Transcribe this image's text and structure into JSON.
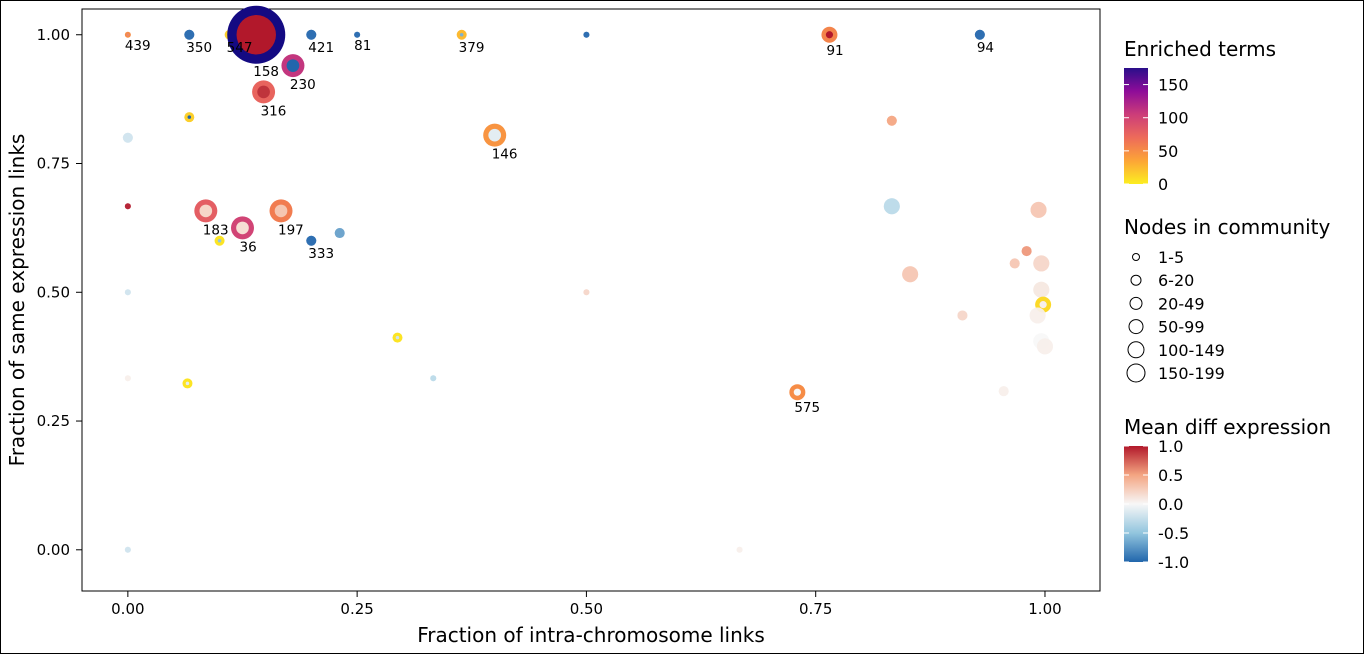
{
  "chart_data": {
    "type": "scatter",
    "xlabel": "Fraction of intra-chromosome links",
    "ylabel": "Fraction of same expression links",
    "xlim": [
      -0.05,
      1.06
    ],
    "ylim": [
      -0.08,
      1.05
    ],
    "x_ticks": [
      0.0,
      0.25,
      0.5,
      0.75,
      1.0
    ],
    "x_tick_labels": [
      "0.00",
      "0.25",
      "0.50",
      "0.75",
      "1.00"
    ],
    "y_ticks": [
      0.0,
      0.25,
      0.5,
      0.75,
      1.0
    ],
    "y_tick_labels": [
      "0.00",
      "0.25",
      "0.50",
      "0.75",
      "1.00"
    ],
    "grid": false,
    "legend_position": "right",
    "legends": {
      "enriched_terms": {
        "title": "Enriched terms",
        "ticks": [
          "150",
          "100",
          "50",
          "0"
        ],
        "range": [
          0,
          175
        ]
      },
      "nodes_in_community": {
        "title": "Nodes in community",
        "bins": [
          "1-5",
          "6-20",
          "20-49",
          "50-99",
          "100-149",
          "150-199"
        ]
      },
      "mean_diff_expression": {
        "title": "Mean diff expression",
        "ticks": [
          "1.0",
          "0.5",
          "0.0",
          "-0.5",
          "-1.0"
        ],
        "range": [
          -1.0,
          1.0
        ]
      }
    },
    "points": [
      {
        "x": 0.0,
        "y": 1.0,
        "size_bin": 1,
        "terms": 50,
        "diff": 0.6,
        "label": "439"
      },
      {
        "x": 0.067,
        "y": 1.0,
        "size_bin": 2,
        "terms": 0,
        "diff": -1.0,
        "label": "350"
      },
      {
        "x": 0.111,
        "y": 1.0,
        "size_bin": 2,
        "terms": 15,
        "diff": -0.9,
        "label": "547"
      },
      {
        "x": 0.14,
        "y": 1.0,
        "size_bin": 6,
        "terms": 175,
        "diff": 1.0,
        "label": "158"
      },
      {
        "x": 0.2,
        "y": 1.0,
        "size_bin": 2,
        "terms": 0,
        "diff": -1.0,
        "label": "421"
      },
      {
        "x": 0.25,
        "y": 1.0,
        "size_bin": 1,
        "terms": 0,
        "diff": -1.0,
        "label": "81"
      },
      {
        "x": 0.364,
        "y": 1.0,
        "size_bin": 2,
        "terms": 25,
        "diff": -0.6,
        "label": "379"
      },
      {
        "x": 0.5,
        "y": 1.0,
        "size_bin": 1,
        "terms": 0,
        "diff": -1.0,
        "label": ""
      },
      {
        "x": 0.765,
        "y": 1.0,
        "size_bin": 3,
        "terms": 55,
        "diff": 1.0,
        "label": "91"
      },
      {
        "x": 0.929,
        "y": 1.0,
        "size_bin": 2,
        "terms": 0,
        "diff": -1.0,
        "label": "94"
      },
      {
        "x": 0.18,
        "y": 0.94,
        "size_bin": 4,
        "terms": 110,
        "diff": -1.0,
        "label": "230"
      },
      {
        "x": 0.148,
        "y": 0.889,
        "size_bin": 4,
        "terms": 75,
        "diff": 0.9,
        "label": "316"
      },
      {
        "x": 0.067,
        "y": 0.84,
        "size_bin": 2,
        "terms": 15,
        "diff": -1.0,
        "label": ""
      },
      {
        "x": 0.0,
        "y": 0.8,
        "size_bin": 2,
        "terms": 0,
        "diff": -0.2,
        "label": ""
      },
      {
        "x": 0.4,
        "y": 0.805,
        "size_bin": 4,
        "terms": 45,
        "diff": -0.1,
        "label": "146"
      },
      {
        "x": 0.833,
        "y": 0.833,
        "size_bin": 2,
        "terms": 0,
        "diff": 0.5,
        "label": ""
      },
      {
        "x": 0.0,
        "y": 0.667,
        "size_bin": 1,
        "terms": 0,
        "diff": 1.0,
        "label": ""
      },
      {
        "x": 0.085,
        "y": 0.658,
        "size_bin": 4,
        "terms": 80,
        "diff": 0.2,
        "label": "183"
      },
      {
        "x": 0.125,
        "y": 0.625,
        "size_bin": 4,
        "terms": 100,
        "diff": 0.15,
        "label": "36"
      },
      {
        "x": 0.167,
        "y": 0.658,
        "size_bin": 4,
        "terms": 60,
        "diff": 0.3,
        "label": "197"
      },
      {
        "x": 0.1,
        "y": 0.6,
        "size_bin": 2,
        "terms": 5,
        "diff": -0.5,
        "label": ""
      },
      {
        "x": 0.2,
        "y": 0.6,
        "size_bin": 2,
        "terms": 0,
        "diff": -1.0,
        "label": "333"
      },
      {
        "x": 0.231,
        "y": 0.615,
        "size_bin": 2,
        "terms": 0,
        "diff": -0.7,
        "label": ""
      },
      {
        "x": 0.833,
        "y": 0.667,
        "size_bin": 3,
        "terms": 0,
        "diff": -0.3,
        "label": ""
      },
      {
        "x": 0.0,
        "y": 0.5,
        "size_bin": 1,
        "terms": 0,
        "diff": -0.2,
        "label": ""
      },
      {
        "x": 0.5,
        "y": 0.5,
        "size_bin": 1,
        "terms": 0,
        "diff": 0.2,
        "label": ""
      },
      {
        "x": 0.294,
        "y": 0.412,
        "size_bin": 2,
        "terms": 5,
        "diff": -0.2,
        "label": ""
      },
      {
        "x": 0.0,
        "y": 0.333,
        "size_bin": 1,
        "terms": 0,
        "diff": 0.05,
        "label": ""
      },
      {
        "x": 0.065,
        "y": 0.323,
        "size_bin": 2,
        "terms": 5,
        "diff": -0.1,
        "label": ""
      },
      {
        "x": 0.333,
        "y": 0.333,
        "size_bin": 1,
        "terms": 0,
        "diff": -0.3,
        "label": ""
      },
      {
        "x": 0.73,
        "y": 0.306,
        "size_bin": 3,
        "terms": 50,
        "diff": 0.0,
        "label": "575"
      },
      {
        "x": 0.0,
        "y": 0.0,
        "size_bin": 1,
        "terms": 0,
        "diff": -0.2,
        "label": ""
      },
      {
        "x": 0.667,
        "y": 0.0,
        "size_bin": 1,
        "terms": 0,
        "diff": 0.05,
        "label": ""
      },
      {
        "x": 0.993,
        "y": 0.66,
        "size_bin": 3,
        "terms": 0,
        "diff": 0.3,
        "label": ""
      },
      {
        "x": 0.98,
        "y": 0.58,
        "size_bin": 2,
        "terms": 0,
        "diff": 0.55,
        "label": ""
      },
      {
        "x": 0.967,
        "y": 0.556,
        "size_bin": 2,
        "terms": 0,
        "diff": 0.3,
        "label": ""
      },
      {
        "x": 0.996,
        "y": 0.556,
        "size_bin": 3,
        "terms": 0,
        "diff": 0.2,
        "label": ""
      },
      {
        "x": 0.853,
        "y": 0.535,
        "size_bin": 3,
        "terms": 0,
        "diff": 0.3,
        "label": ""
      },
      {
        "x": 0.996,
        "y": 0.505,
        "size_bin": 3,
        "terms": 0,
        "diff": 0.1,
        "label": ""
      },
      {
        "x": 0.998,
        "y": 0.476,
        "size_bin": 3,
        "terms": 10,
        "diff": 0.05,
        "label": ""
      },
      {
        "x": 0.91,
        "y": 0.455,
        "size_bin": 2,
        "terms": 0,
        "diff": 0.2,
        "label": ""
      },
      {
        "x": 0.992,
        "y": 0.455,
        "size_bin": 3,
        "terms": 0,
        "diff": 0.05,
        "label": ""
      },
      {
        "x": 0.996,
        "y": 0.405,
        "size_bin": 3,
        "terms": 0,
        "diff": 0.0,
        "label": ""
      },
      {
        "x": 1.0,
        "y": 0.395,
        "size_bin": 3,
        "terms": 0,
        "diff": 0.05,
        "label": ""
      },
      {
        "x": 0.955,
        "y": 0.308,
        "size_bin": 2,
        "terms": 0,
        "diff": 0.05,
        "label": ""
      }
    ]
  }
}
